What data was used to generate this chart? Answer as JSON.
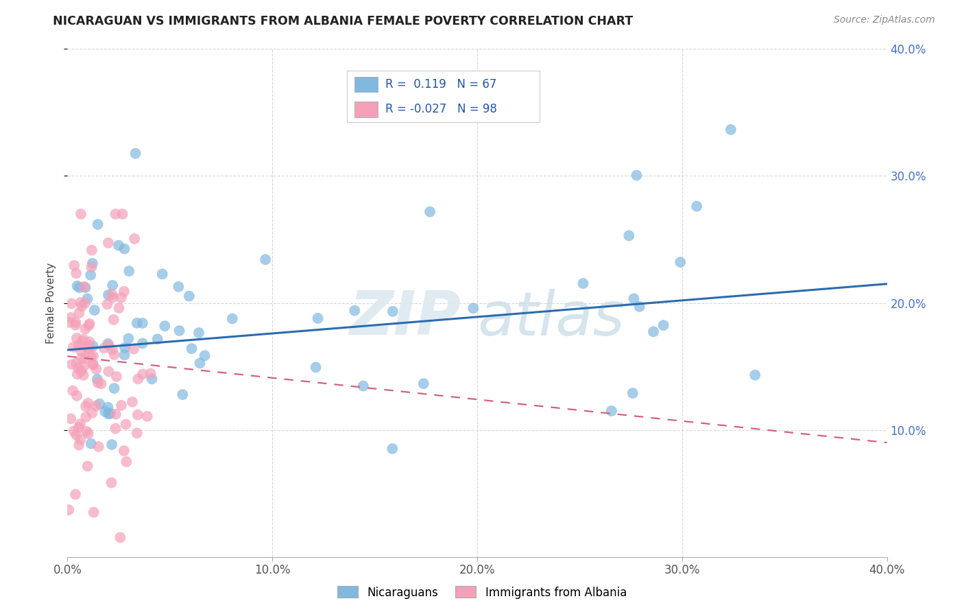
{
  "title": "NICARAGUAN VS IMMIGRANTS FROM ALBANIA FEMALE POVERTY CORRELATION CHART",
  "source": "Source: ZipAtlas.com",
  "ylabel": "Female Poverty",
  "xlim": [
    0.0,
    0.4
  ],
  "ylim": [
    0.0,
    0.4
  ],
  "xtick_vals": [
    0.0,
    0.1,
    0.2,
    0.3,
    0.4
  ],
  "ytick_vals": [
    0.1,
    0.2,
    0.3,
    0.4
  ],
  "legend_labels": [
    "Nicaraguans",
    "Immigrants from Albania"
  ],
  "blue_R": 0.119,
  "blue_N": 67,
  "pink_R": -0.027,
  "pink_N": 98,
  "blue_color": "#80b8e0",
  "pink_color": "#f4a0b8",
  "blue_line_color": "#2b6cb0",
  "pink_line_color": "#d46080",
  "watermark_zip": "ZIP",
  "watermark_atlas": "atlas",
  "tick_color": "#4472c4",
  "background_color": "#ffffff",
  "grid_color": "#cccccc",
  "blue_line_start_y": 0.163,
  "blue_line_end_y": 0.215,
  "pink_line_start_y": 0.158,
  "pink_line_end_y": 0.09
}
